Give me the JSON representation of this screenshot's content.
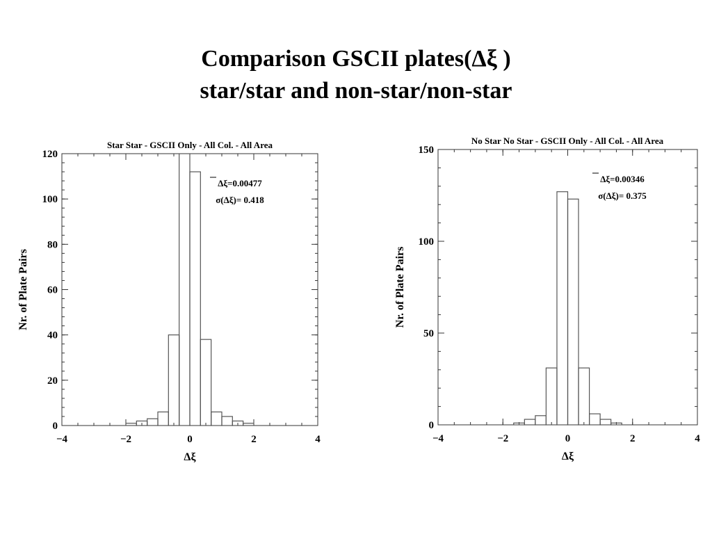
{
  "slide": {
    "title_line1": "Comparison GSCII plates(Δξ )",
    "title_line2": "star/star and non-star/non-star"
  },
  "chart_data": [
    {
      "type": "bar",
      "style": "step-histogram",
      "title": "Star Star - GSCII Only - All Col. - All Area",
      "xlabel": "Δξ",
      "ylabel": "Nr. of Plate Pairs",
      "xlim": [
        -4,
        4
      ],
      "ylim": [
        0,
        120
      ],
      "xticks": [
        "-4",
        "-2",
        "0",
        "2",
        "4"
      ],
      "yticks": [
        "0",
        "20",
        "40",
        "60",
        "80",
        "100",
        "120"
      ],
      "bin_edges": [
        -2.0,
        -1.667,
        -1.333,
        -1.0,
        -0.667,
        -0.333,
        0.0,
        0.333,
        0.667,
        1.0,
        1.333,
        1.667,
        2.0
      ],
      "values": [
        1,
        2,
        3,
        6,
        40,
        120,
        112,
        38,
        6,
        4,
        2,
        1
      ],
      "annotations": [
        {
          "label": "Δξ",
          "value": "=0.00477"
        },
        {
          "label": "σ(Δξ)=",
          "value": "0.418"
        }
      ],
      "grid": false,
      "color": "#555555"
    },
    {
      "type": "bar",
      "style": "step-histogram",
      "title": "No Star No Star - GSCII Only - All Col. - All Area",
      "xlabel": "Δξ",
      "ylabel": "Nr. of Plate Pairs",
      "xlim": [
        -4,
        4
      ],
      "ylim": [
        0,
        150
      ],
      "xticks": [
        "-4",
        "-2",
        "0",
        "2",
        "4"
      ],
      "yticks": [
        "0",
        "50",
        "100",
        "150"
      ],
      "bin_edges": [
        -1.667,
        -1.333,
        -1.0,
        -0.667,
        -0.333,
        0.0,
        0.333,
        0.667,
        1.0,
        1.333,
        1.667
      ],
      "values": [
        1,
        3,
        5,
        31,
        127,
        123,
        31,
        6,
        3,
        1
      ],
      "annotations": [
        {
          "label": "Δξ",
          "value": "=0.00346"
        },
        {
          "label": "σ(Δξ)=",
          "value": "0.375"
        }
      ],
      "grid": false,
      "color": "#555555"
    }
  ]
}
